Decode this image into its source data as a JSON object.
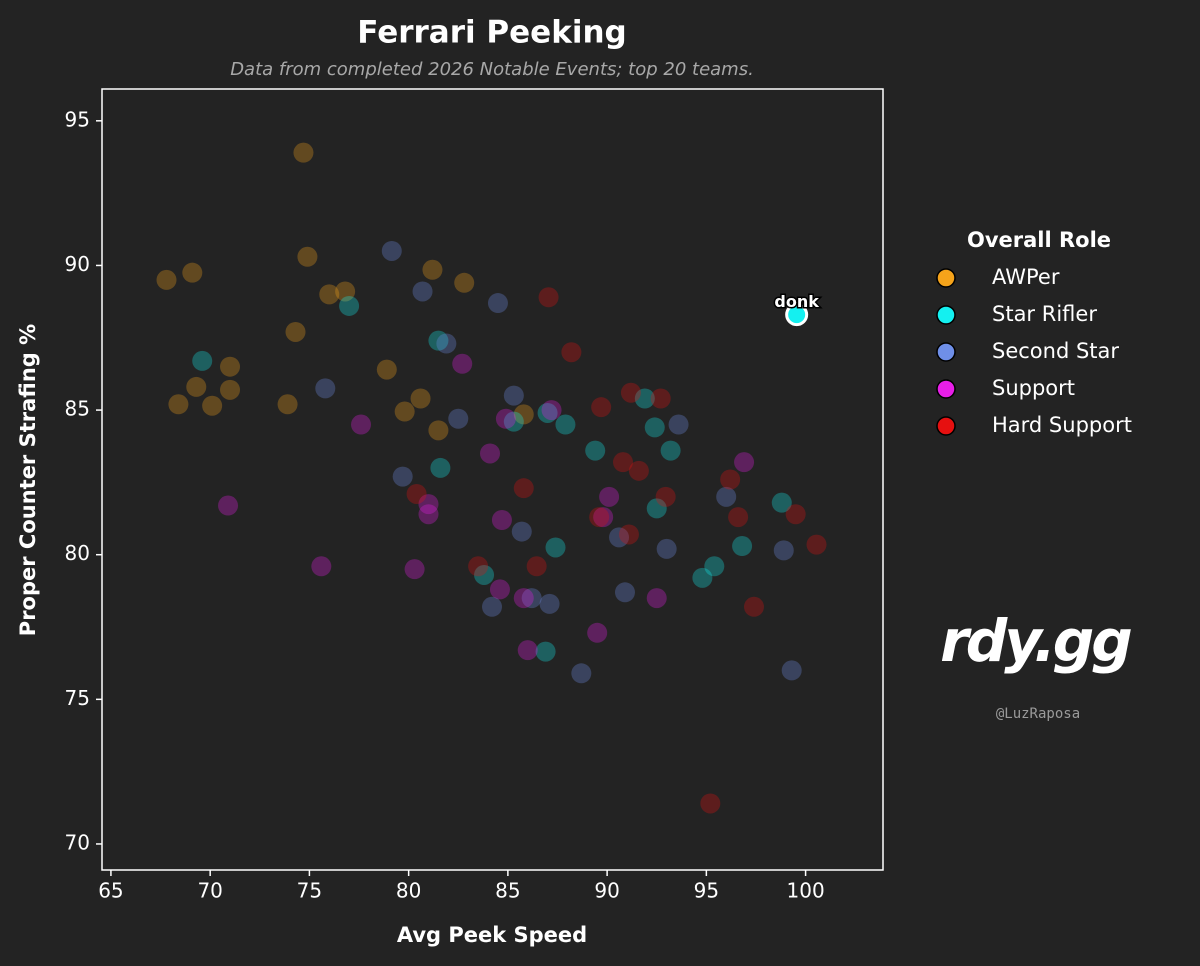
{
  "chart_data": {
    "type": "scatter",
    "title": "Ferrari Peeking",
    "subtitle": "Data from completed 2026 Notable Events; top 20 teams.",
    "x_label": "Avg Peek Speed",
    "y_label": "Proper Counter Strafing %",
    "legend_title": "Overall Role",
    "xlim": [
      64.55,
      103.9
    ],
    "ylim": [
      69.1,
      96.1
    ],
    "xticks": [
      65,
      70,
      75,
      80,
      85,
      90,
      95,
      100
    ],
    "yticks": [
      70,
      75,
      80,
      85,
      90,
      95
    ],
    "series": [
      {
        "name": "AWPer",
        "color": "#f5a31a",
        "x": [
          74.7,
          67.8,
          69.1,
          74.9,
          76.8,
          76.0,
          81.2,
          82.8,
          74.3,
          78.9,
          71.0,
          69.3,
          68.4,
          70.1,
          71.0,
          73.9,
          79.8,
          80.6,
          81.5,
          85.8
        ],
        "y": [
          93.9,
          89.5,
          89.75,
          90.3,
          89.1,
          89.0,
          89.85,
          89.4,
          87.7,
          86.4,
          86.5,
          85.8,
          85.2,
          85.15,
          85.7,
          85.2,
          84.95,
          85.4,
          84.3,
          84.85
        ]
      },
      {
        "name": "Star Rifler",
        "color": "#14f0f0",
        "x": [
          69.6,
          77.0,
          81.5,
          81.6,
          83.8,
          85.3,
          87.0,
          87.9,
          89.4,
          91.9,
          92.4,
          93.2,
          92.5,
          87.4,
          86.9,
          94.8,
          95.4,
          96.8,
          98.8,
          99.55
        ],
        "y": [
          86.7,
          88.6,
          87.4,
          83.0,
          79.3,
          84.6,
          84.9,
          84.5,
          83.6,
          85.4,
          84.4,
          83.6,
          81.6,
          80.25,
          76.65,
          79.2,
          79.6,
          80.3,
          81.8,
          88.3
        ],
        "labels": [
          null,
          null,
          null,
          null,
          null,
          null,
          null,
          null,
          null,
          null,
          null,
          null,
          null,
          null,
          null,
          null,
          null,
          null,
          null,
          "donk"
        ]
      },
      {
        "name": "Second Star",
        "color": "#6f8fe8",
        "x": [
          79.15,
          80.7,
          84.5,
          75.8,
          81.9,
          82.5,
          85.3,
          79.7,
          85.7,
          84.2,
          86.2,
          87.1,
          88.7,
          90.9,
          90.6,
          93.0,
          93.6,
          96.0,
          98.9,
          99.3
        ],
        "y": [
          90.5,
          89.1,
          88.7,
          85.75,
          87.3,
          84.7,
          85.5,
          82.7,
          80.8,
          78.2,
          78.5,
          78.3,
          75.9,
          78.7,
          80.6,
          80.2,
          84.5,
          82.0,
          80.15,
          76.0
        ]
      },
      {
        "name": "Support",
        "color": "#e81ee8",
        "x": [
          70.9,
          75.6,
          77.6,
          82.7,
          84.1,
          84.9,
          87.2,
          81.0,
          81.0,
          80.3,
          84.7,
          84.6,
          85.8,
          86.0,
          89.5,
          90.1,
          89.8,
          92.5,
          96.9
        ],
        "y": [
          81.7,
          79.6,
          84.5,
          86.6,
          83.5,
          84.7,
          85.0,
          81.75,
          81.4,
          79.5,
          81.2,
          78.8,
          78.5,
          76.7,
          77.3,
          82.0,
          81.3,
          78.5,
          83.2
        ]
      },
      {
        "name": "Hard Support",
        "color": "#e61010",
        "x": [
          87.05,
          88.2,
          89.7,
          91.2,
          92.7,
          90.8,
          91.6,
          92.95,
          91.1,
          89.6,
          85.8,
          80.4,
          83.5,
          86.45,
          96.2,
          96.6,
          97.4,
          99.5,
          100.55,
          95.2
        ],
        "y": [
          88.9,
          87.0,
          85.1,
          85.6,
          85.4,
          83.2,
          82.9,
          82.0,
          80.7,
          81.3,
          82.3,
          82.1,
          79.6,
          79.6,
          82.6,
          81.3,
          78.2,
          81.4,
          80.35,
          71.4
        ]
      }
    ],
    "watermark": {
      "logo": "rdy.gg",
      "handle": "@LuzRaposa"
    }
  }
}
